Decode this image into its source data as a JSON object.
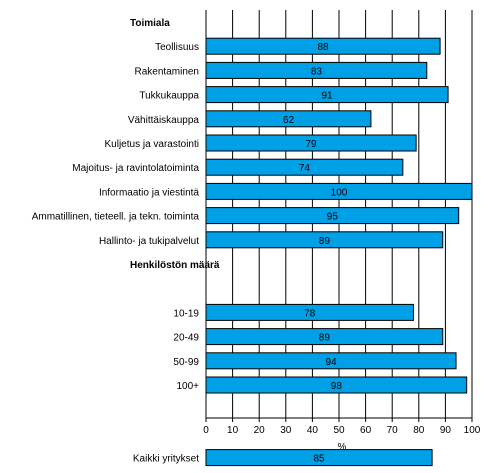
{
  "chart_data": {
    "type": "bar",
    "orientation": "horizontal",
    "bar_color": "#00a0e6",
    "grid": true,
    "xlabel": "%",
    "xlim": [
      0,
      100
    ],
    "xticks": [
      "0",
      "10",
      "20",
      "30",
      "40",
      "50",
      "60",
      "70",
      "80",
      "90",
      "100"
    ],
    "rows": [
      {
        "kind": "header",
        "label": "Toimiala"
      },
      {
        "kind": "bar",
        "label": "Teollisuus",
        "value": 88
      },
      {
        "kind": "bar",
        "label": "Rakentaminen",
        "value": 83
      },
      {
        "kind": "bar",
        "label": "Tukkukauppa",
        "value": 91
      },
      {
        "kind": "bar",
        "label": "Vähittäiskauppa",
        "value": 62
      },
      {
        "kind": "bar",
        "label": "Kuljetus ja varastointi",
        "value": 79
      },
      {
        "kind": "bar",
        "label": "Majoitus- ja ravintolatoiminta",
        "value": 74
      },
      {
        "kind": "bar",
        "label": "Informaatio ja viestintä",
        "value": 100
      },
      {
        "kind": "bar",
        "label": "Ammatillinen, tieteell. ja tekn. toiminta",
        "value": 95
      },
      {
        "kind": "bar",
        "label": "Hallinto- ja tukipalvelut",
        "value": 89
      },
      {
        "kind": "header",
        "label": "Henkilöstön määrä"
      },
      {
        "kind": "spacer"
      },
      {
        "kind": "bar",
        "label": "10-19",
        "value": 78
      },
      {
        "kind": "bar",
        "label": "20-49",
        "value": 89
      },
      {
        "kind": "bar",
        "label": "50-99",
        "value": 94
      },
      {
        "kind": "bar",
        "label": "100+",
        "value": 98
      },
      {
        "kind": "spacer"
      },
      {
        "kind": "spacer"
      },
      {
        "kind": "bar",
        "label": "Kaikki yritykset",
        "value": 85
      }
    ]
  }
}
